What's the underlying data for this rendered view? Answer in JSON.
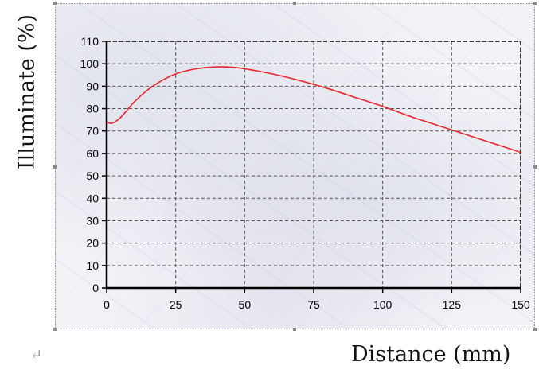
{
  "return_mark": "↵",
  "chart_data": {
    "type": "line",
    "xlabel": "Distance (mm)",
    "ylabel": "Illuminate (%)",
    "xlim": [
      0,
      150
    ],
    "ylim": [
      0,
      110
    ],
    "xticks": [
      0,
      25,
      50,
      75,
      100,
      125,
      150
    ],
    "yticks": [
      0,
      10,
      20,
      30,
      40,
      50,
      60,
      70,
      80,
      90,
      100,
      110
    ],
    "grid": true,
    "series": [
      {
        "color": "#e8262b",
        "x": [
          0,
          2,
          5,
          10,
          15,
          20,
          25,
          30,
          35,
          40,
          45,
          50,
          60,
          70,
          80,
          90,
          100,
          110,
          120,
          130,
          140,
          150
        ],
        "y": [
          74,
          73.5,
          76,
          83,
          88.5,
          92.5,
          95.5,
          97.2,
          98.2,
          98.6,
          98.5,
          97.8,
          95.5,
          92.5,
          89,
          85,
          81,
          76.5,
          72.5,
          68.5,
          64.5,
          60.5
        ]
      }
    ]
  },
  "colors": {
    "line": "#e8262b",
    "grid": "#555555",
    "axis": "#000000"
  }
}
